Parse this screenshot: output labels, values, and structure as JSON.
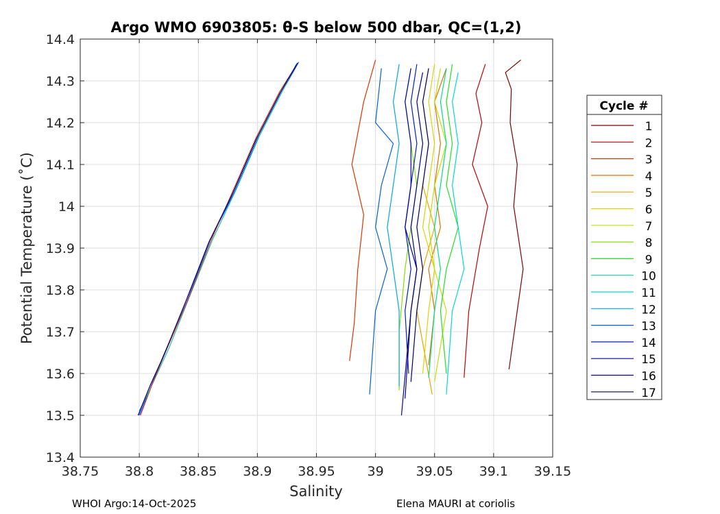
{
  "chart_data": {
    "type": "line",
    "title": "Argo WMO 6903805: θ-S below 500 dbar,  QC=(1,2)",
    "xlabel": "Salinity",
    "ylabel": "Potential Temperature (˚C)",
    "xlim": [
      38.75,
      39.15
    ],
    "ylim": [
      13.4,
      14.4
    ],
    "xticks": [
      "38.75",
      "38.8",
      "38.85",
      "38.9",
      "38.95",
      "39",
      "39.05",
      "39.1",
      "39.15"
    ],
    "yticks": [
      "13.4",
      "13.5",
      "13.6",
      "13.7",
      "13.8",
      "13.9",
      "14",
      "14.1",
      "14.2",
      "14.3",
      "14.4"
    ],
    "grid": true,
    "legend_title": "Cycle #",
    "legend_position": "right",
    "series": [
      {
        "name": "1",
        "color": "#800000",
        "points": [
          [
            39.123,
            14.35
          ],
          [
            39.11,
            14.32
          ],
          [
            39.115,
            14.28
          ],
          [
            39.114,
            14.2
          ],
          [
            39.12,
            14.1
          ],
          [
            39.117,
            14.0
          ],
          [
            39.125,
            13.85
          ],
          [
            39.12,
            13.75
          ],
          [
            39.113,
            13.61
          ]
        ]
      },
      {
        "name": "2",
        "color": "#c00000",
        "points": [
          [
            39.093,
            14.34
          ],
          [
            39.085,
            14.27
          ],
          [
            39.09,
            14.2
          ],
          [
            39.082,
            14.1
          ],
          [
            39.095,
            14.0
          ],
          [
            39.088,
            13.9
          ],
          [
            39.079,
            13.75
          ],
          [
            39.075,
            13.59
          ]
        ]
      },
      {
        "name": "3",
        "color": "#e03000",
        "points": [
          [
            39.0,
            14.35
          ],
          [
            38.99,
            14.25
          ],
          [
            38.98,
            14.1
          ],
          [
            38.99,
            13.98
          ],
          [
            38.985,
            13.85
          ],
          [
            38.982,
            13.72
          ],
          [
            38.978,
            13.63
          ]
        ]
      },
      {
        "name": "4",
        "color": "#e07000",
        "points": [
          [
            39.06,
            14.33
          ],
          [
            39.05,
            14.25
          ],
          [
            39.055,
            14.15
          ],
          [
            39.05,
            14.05
          ],
          [
            39.055,
            13.95
          ],
          [
            39.045,
            13.85
          ],
          [
            39.05,
            13.75
          ],
          [
            39.045,
            13.62
          ]
        ]
      },
      {
        "name": "5",
        "color": "#f0a000",
        "points": [
          [
            39.045,
            14.33
          ],
          [
            39.04,
            14.25
          ],
          [
            39.045,
            14.15
          ],
          [
            39.04,
            14.05
          ],
          [
            39.05,
            13.95
          ],
          [
            39.04,
            13.85
          ],
          [
            39.035,
            13.75
          ],
          [
            39.048,
            13.55
          ]
        ]
      },
      {
        "name": "6",
        "color": "#e0d000",
        "points": [
          [
            39.05,
            14.34
          ],
          [
            39.045,
            14.25
          ],
          [
            39.05,
            14.15
          ],
          [
            39.045,
            14.05
          ],
          [
            39.04,
            13.95
          ],
          [
            39.05,
            13.85
          ],
          [
            39.045,
            13.75
          ],
          [
            39.04,
            13.6
          ]
        ]
      },
      {
        "name": "7",
        "color": "#c0e000",
        "points": [
          [
            39.055,
            14.33
          ],
          [
            39.05,
            14.25
          ],
          [
            39.06,
            14.15
          ],
          [
            39.05,
            14.05
          ],
          [
            39.045,
            13.95
          ],
          [
            39.05,
            13.85
          ],
          [
            39.06,
            13.75
          ],
          [
            39.05,
            13.58
          ]
        ]
      },
      {
        "name": "8",
        "color": "#80e000",
        "points": [
          [
            39.03,
            14.33
          ],
          [
            39.025,
            14.25
          ],
          [
            39.03,
            14.15
          ],
          [
            39.035,
            14.05
          ],
          [
            39.03,
            13.95
          ],
          [
            39.025,
            13.85
          ],
          [
            39.02,
            13.7
          ],
          [
            39.02,
            13.56
          ]
        ]
      },
      {
        "name": "9",
        "color": "#20e020",
        "points": [
          [
            39.065,
            14.34
          ],
          [
            39.06,
            14.25
          ],
          [
            39.065,
            14.15
          ],
          [
            39.06,
            14.05
          ],
          [
            39.07,
            13.95
          ],
          [
            39.06,
            13.85
          ],
          [
            39.055,
            13.75
          ],
          [
            39.06,
            13.6
          ]
        ]
      },
      {
        "name": "10",
        "color": "#00e080",
        "points": [
          [
            39.06,
            14.33
          ],
          [
            39.055,
            14.25
          ],
          [
            39.06,
            14.15
          ],
          [
            39.055,
            14.05
          ],
          [
            39.05,
            13.95
          ],
          [
            39.055,
            13.85
          ],
          [
            39.05,
            13.75
          ],
          [
            39.045,
            13.59
          ]
        ]
      },
      {
        "name": "11",
        "color": "#00d8d8",
        "points": [
          [
            39.07,
            14.32
          ],
          [
            39.065,
            14.25
          ],
          [
            39.07,
            14.15
          ],
          [
            39.065,
            14.05
          ],
          [
            39.07,
            13.95
          ],
          [
            39.075,
            13.85
          ],
          [
            39.065,
            13.75
          ],
          [
            39.06,
            13.55
          ]
        ]
      },
      {
        "name": "12",
        "color": "#00a8e0",
        "points": [
          [
            39.02,
            14.34
          ],
          [
            39.015,
            14.25
          ],
          [
            39.02,
            14.15
          ],
          [
            39.015,
            14.05
          ],
          [
            39.01,
            13.95
          ],
          [
            39.015,
            13.85
          ],
          [
            39.02,
            13.75
          ],
          [
            39.02,
            13.57
          ]
        ]
      },
      {
        "name": "13",
        "color": "#0060d0",
        "points": [
          [
            39.005,
            14.33
          ],
          [
            39.0,
            14.2
          ],
          [
            39.015,
            14.15
          ],
          [
            39.005,
            14.05
          ],
          [
            39.0,
            13.95
          ],
          [
            39.01,
            13.85
          ],
          [
            39.0,
            13.75
          ],
          [
            38.995,
            13.55
          ]
        ]
      },
      {
        "name": "14",
        "color": "#0020c0",
        "points": [
          [
            39.035,
            14.34
          ],
          [
            39.03,
            14.25
          ],
          [
            39.035,
            14.15
          ],
          [
            39.03,
            14.05
          ],
          [
            39.025,
            13.95
          ],
          [
            39.03,
            13.85
          ],
          [
            39.025,
            13.75
          ],
          [
            39.028,
            13.6
          ]
        ]
      },
      {
        "name": "15",
        "color": "#0000a0",
        "points": [
          [
            39.03,
            14.33
          ],
          [
            39.025,
            14.25
          ],
          [
            39.03,
            14.15
          ],
          [
            39.03,
            14.05
          ],
          [
            39.025,
            13.95
          ],
          [
            39.035,
            13.85
          ],
          [
            39.03,
            13.75
          ],
          [
            39.022,
            13.5
          ]
        ]
      },
      {
        "name": "16",
        "color": "#000080",
        "points": [
          [
            39.04,
            14.32
          ],
          [
            39.035,
            14.25
          ],
          [
            39.04,
            14.15
          ],
          [
            39.035,
            14.05
          ],
          [
            39.03,
            13.95
          ],
          [
            39.035,
            13.85
          ],
          [
            39.03,
            13.75
          ],
          [
            39.025,
            13.54
          ]
        ]
      },
      {
        "name": "17",
        "color": "#000060",
        "points": [
          [
            39.045,
            14.33
          ],
          [
            39.04,
            14.25
          ],
          [
            39.045,
            14.15
          ],
          [
            39.04,
            14.05
          ],
          [
            39.035,
            13.95
          ],
          [
            39.04,
            13.85
          ],
          [
            39.035,
            13.75
          ],
          [
            39.03,
            13.58
          ]
        ]
      },
      {
        "color": "#0050ff",
        "points": [
          [
            38.8,
            13.5
          ],
          [
            38.81,
            13.57
          ],
          [
            38.82,
            13.64
          ],
          [
            38.84,
            13.77
          ],
          [
            38.86,
            13.92
          ],
          [
            38.88,
            14.03
          ],
          [
            38.9,
            14.16
          ],
          [
            38.92,
            14.27
          ],
          [
            38.935,
            14.345
          ]
        ]
      },
      {
        "color": "#20c0a0",
        "points": [
          [
            38.8,
            13.51
          ],
          [
            38.812,
            13.58
          ],
          [
            38.825,
            13.66
          ],
          [
            38.842,
            13.78
          ],
          [
            38.862,
            13.92
          ],
          [
            38.882,
            14.04
          ],
          [
            38.902,
            14.17
          ],
          [
            38.922,
            14.28
          ],
          [
            38.933,
            14.34
          ]
        ]
      },
      {
        "color": "#d04020",
        "points": [
          [
            38.801,
            13.5
          ],
          [
            38.811,
            13.575
          ],
          [
            38.822,
            13.65
          ],
          [
            38.841,
            13.775
          ],
          [
            38.861,
            13.92
          ],
          [
            38.879,
            14.035
          ],
          [
            38.899,
            14.165
          ],
          [
            38.919,
            14.275
          ],
          [
            38.934,
            14.342
          ]
        ]
      },
      {
        "color": "#000080",
        "points": [
          [
            38.799,
            13.5
          ],
          [
            38.809,
            13.57
          ],
          [
            38.821,
            13.645
          ],
          [
            38.839,
            13.77
          ],
          [
            38.859,
            13.915
          ],
          [
            38.879,
            14.03
          ],
          [
            38.899,
            14.16
          ],
          [
            38.919,
            14.27
          ],
          [
            38.934,
            14.343
          ]
        ]
      }
    ]
  },
  "footer": {
    "left": "WHOI Argo:14-Oct-2025",
    "right": "Elena MAURI at coriolis"
  }
}
